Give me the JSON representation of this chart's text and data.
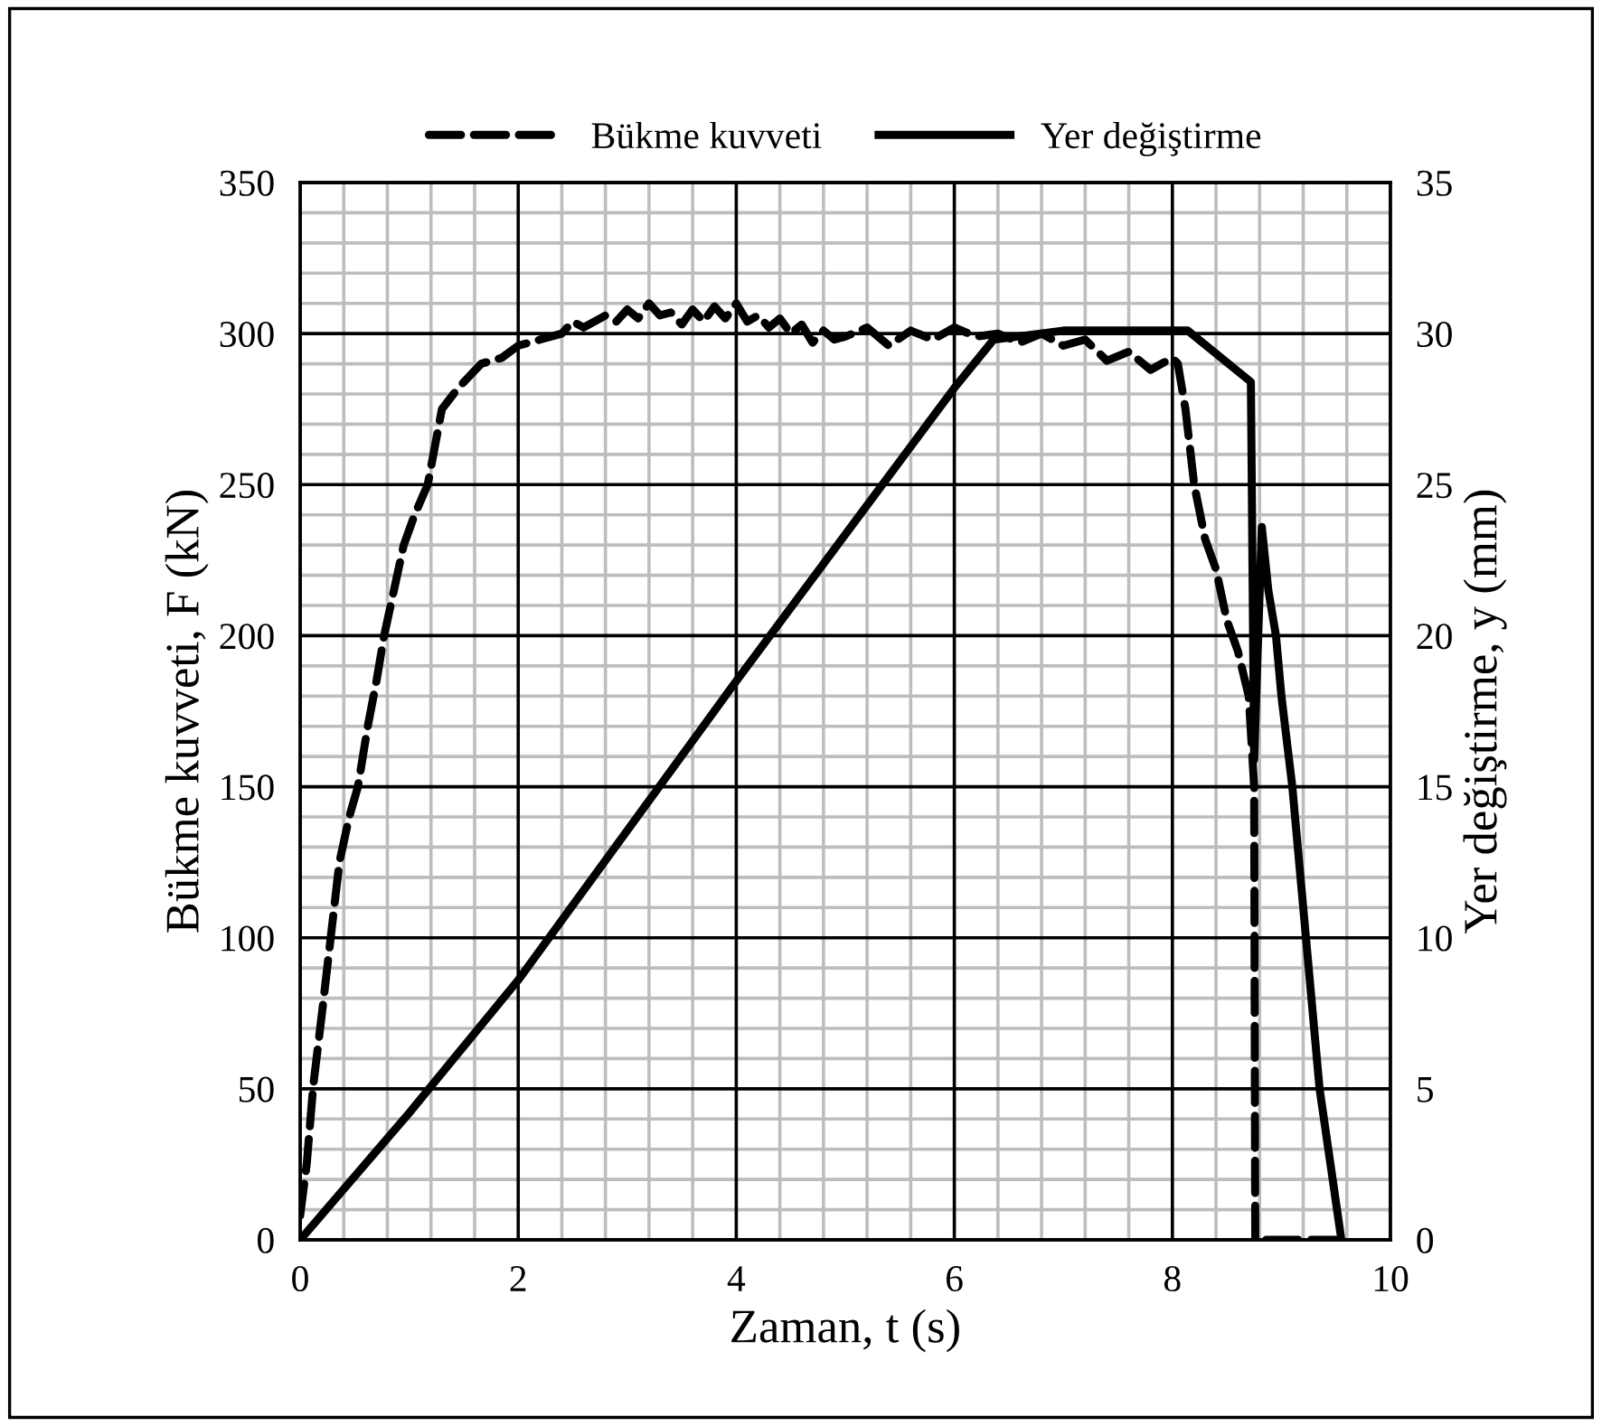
{
  "chart_data": {
    "type": "line",
    "xlabel": "Zaman, t (s)",
    "ylabel": "Bükme kuvveti, F (kN)",
    "y2label": "Yer değiştirme, y (mm)",
    "xlim": [
      0,
      10
    ],
    "xticks": [
      0,
      2,
      4,
      6,
      8,
      10
    ],
    "ylim": [
      0,
      350
    ],
    "yticks": [
      0,
      50,
      100,
      150,
      200,
      250,
      300,
      350
    ],
    "y2lim": [
      0,
      35
    ],
    "y2ticks": [
      0,
      5,
      10,
      15,
      20,
      25,
      30,
      35
    ],
    "grid": true,
    "legend": "top",
    "marker": "none",
    "series": [
      {
        "name": "Bükme kuvveti",
        "color": "#000000",
        "line_style": "dashed",
        "x": [
          0,
          0.06,
          0.12,
          0.2,
          0.28,
          0.36,
          0.45,
          0.53,
          0.62,
          0.7,
          0.77,
          0.86,
          0.95,
          1.05,
          1.17,
          1.3,
          1.45,
          1.66,
          1.85,
          2.0,
          2.2,
          2.4,
          2.5,
          2.6,
          2.8,
          2.9,
          3.0,
          3.1,
          3.2,
          3.3,
          3.4,
          3.5,
          3.6,
          3.7,
          3.8,
          3.9,
          4.0,
          4.1,
          4.2,
          4.3,
          4.4,
          4.5,
          4.6,
          4.7,
          4.8,
          4.9,
          5.0,
          5.2,
          5.4,
          5.6,
          5.8,
          6.0,
          6.2,
          6.4,
          6.6,
          6.8,
          7.0,
          7.2,
          7.4,
          7.6,
          7.8,
          8.0,
          8.05,
          8.12,
          8.2,
          8.3,
          8.4,
          8.5,
          8.6,
          8.7,
          8.75,
          8.76,
          9.5
        ],
        "values": [
          8,
          25,
          51,
          75,
          100,
          125,
          140,
          150,
          170,
          185,
          200,
          215,
          230,
          240,
          250,
          275,
          282,
          290,
          292,
          296,
          298,
          300,
          304,
          302,
          306,
          304,
          308,
          305,
          310,
          306,
          307,
          303,
          308,
          304,
          309,
          305,
          310,
          304,
          306,
          302,
          305,
          300,
          303,
          297,
          301,
          298,
          299,
          302,
          296,
          301,
          298,
          302,
          299,
          300,
          297,
          300,
          296,
          298,
          291,
          294,
          288,
          292,
          290,
          275,
          250,
          232,
          222,
          205,
          195,
          180,
          150,
          0,
          0
        ]
      },
      {
        "name": "Yer değiştirme",
        "color": "#000000",
        "line_style": "solid",
        "axis": "y2",
        "x": [
          0,
          1,
          2,
          4,
          6,
          6.36,
          7,
          8.14,
          8.72,
          8.75,
          8.82,
          8.88,
          8.95,
          9.0,
          9.1,
          9.2,
          9.35,
          9.55
        ],
        "values": [
          0,
          4.2,
          8.6,
          18.5,
          28.2,
          29.8,
          30.1,
          30.1,
          28.4,
          15.9,
          23.6,
          21.5,
          20,
          18,
          15,
          11,
          5,
          0
        ]
      }
    ]
  }
}
